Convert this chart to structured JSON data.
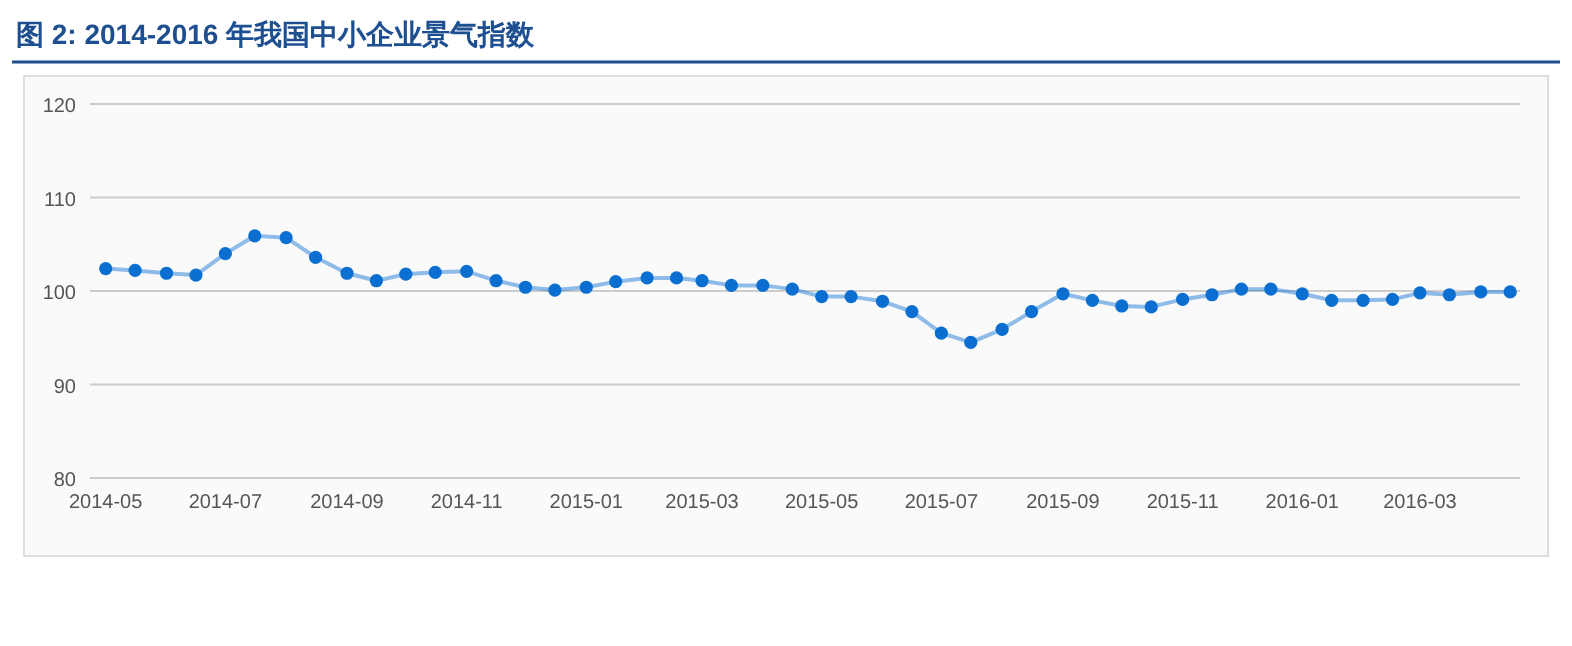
{
  "chart_data": {
    "type": "line",
    "title": "图 2: 2014-2016 年我国中小企业景气指数",
    "x": [
      "2014-05-01",
      "2014-05-16",
      "2014-06-01",
      "2014-06-16",
      "2014-07-01",
      "2014-07-16",
      "2014-08-01",
      "2014-08-16",
      "2014-09-01",
      "2014-09-16",
      "2014-10-01",
      "2014-10-16",
      "2014-11-01",
      "2014-11-16",
      "2014-12-01",
      "2014-12-16",
      "2015-01-01",
      "2015-01-16",
      "2015-02-01",
      "2015-02-16",
      "2015-03-01",
      "2015-03-16",
      "2015-04-01",
      "2015-04-16",
      "2015-05-01",
      "2015-05-16",
      "2015-06-01",
      "2015-06-16",
      "2015-07-01",
      "2015-07-16",
      "2015-08-01",
      "2015-08-16",
      "2015-09-01",
      "2015-09-16",
      "2015-10-01",
      "2015-10-16",
      "2015-11-01",
      "2015-11-16",
      "2015-12-01",
      "2015-12-16",
      "2016-01-01",
      "2016-01-16",
      "2016-02-01",
      "2016-02-16",
      "2016-03-01",
      "2016-03-16",
      "2016-04-01",
      "2016-04-16"
    ],
    "series": [
      {
        "color": "#0a6fd0",
        "values": [
          102.4,
          102.2,
          101.9,
          101.7,
          104.0,
          105.9,
          105.7,
          103.6,
          101.9,
          101.1,
          101.8,
          102.0,
          102.1,
          101.1,
          100.4,
          100.1,
          100.4,
          101.0,
          101.4,
          101.4,
          101.1,
          100.6,
          100.6,
          100.2,
          99.4,
          99.4,
          98.9,
          97.8,
          95.5,
          94.5,
          95.9,
          97.8,
          99.7,
          99.0,
          98.4,
          98.3,
          99.1,
          99.6,
          100.2,
          100.2,
          99.7,
          99.0,
          99.0,
          99.1,
          99.8,
          99.6,
          99.9,
          99.9
        ]
      }
    ],
    "xlim": [
      "2014-04-23",
      "2016-04-21"
    ],
    "xticks": [
      {
        "value": "2014-05-01",
        "label": "2014-05"
      },
      {
        "value": "2014-07-01",
        "label": "2014-07"
      },
      {
        "value": "2014-09-01",
        "label": "2014-09"
      },
      {
        "value": "2014-11-01",
        "label": "2014-11"
      },
      {
        "value": "2015-01-01",
        "label": "2015-01"
      },
      {
        "value": "2015-03-01",
        "label": "2015-03"
      },
      {
        "value": "2015-05-01",
        "label": "2015-05"
      },
      {
        "value": "2015-07-01",
        "label": "2015-07"
      },
      {
        "value": "2015-09-01",
        "label": "2015-09"
      },
      {
        "value": "2015-11-01",
        "label": "2015-11"
      },
      {
        "value": "2016-01-01",
        "label": "2016-01"
      },
      {
        "value": "2016-03-01",
        "label": "2016-03"
      }
    ],
    "ylim": [
      80,
      120
    ],
    "yticks": [
      80,
      90,
      100,
      110,
      120
    ],
    "grid": "y",
    "marker": "circle",
    "line_style": "solid"
  }
}
